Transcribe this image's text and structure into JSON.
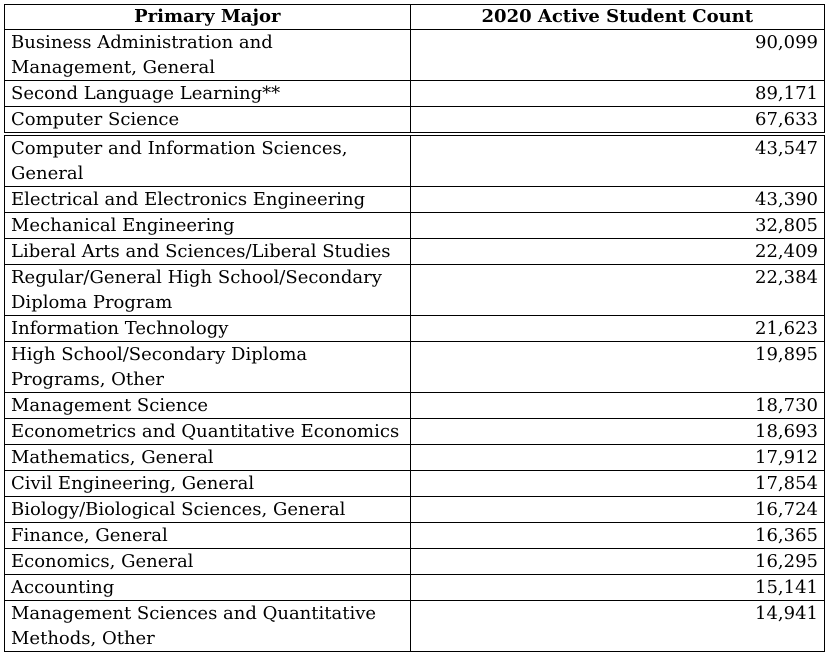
{
  "table": {
    "headers": [
      "Primary Major",
      "2020 Active Student Count"
    ],
    "rows": [
      {
        "major": "Business Administration and Management, General",
        "count": "90,099"
      },
      {
        "major": "Second Language Learning**",
        "count": "89,171"
      },
      {
        "major": "Computer Science",
        "count": "67,633"
      },
      {
        "major": "Computer and Information Sciences, General",
        "count": "43,547"
      },
      {
        "major": "Electrical and Electronics Engineering",
        "count": "43,390"
      },
      {
        "major": "Mechanical Engineering",
        "count": "32,805"
      },
      {
        "major": "Liberal Arts and Sciences/Liberal Studies",
        "count": "22,409"
      },
      {
        "major": "Regular/General High School/Secondary Diploma Program",
        "count": "22,384"
      },
      {
        "major": "Information Technology",
        "count": "21,623"
      },
      {
        "major": "High School/Secondary Diploma Programs, Other",
        "count": "19,895"
      },
      {
        "major": "Management Science",
        "count": "18,730"
      },
      {
        "major": "Econometrics and Quantitative Economics",
        "count": "18,693"
      },
      {
        "major": "Mathematics, General",
        "count": "17,912"
      },
      {
        "major": "Civil Engineering, General",
        "count": "17,854"
      },
      {
        "major": "Biology/Biological Sciences, General",
        "count": "16,724"
      },
      {
        "major": "Finance, General",
        "count": "16,365"
      },
      {
        "major": "Economics, General",
        "count": "16,295"
      },
      {
        "major": "Accounting",
        "count": "15,141"
      },
      {
        "major": "Management Sciences and Quantitative Methods, Other",
        "count": "14,941"
      }
    ]
  }
}
